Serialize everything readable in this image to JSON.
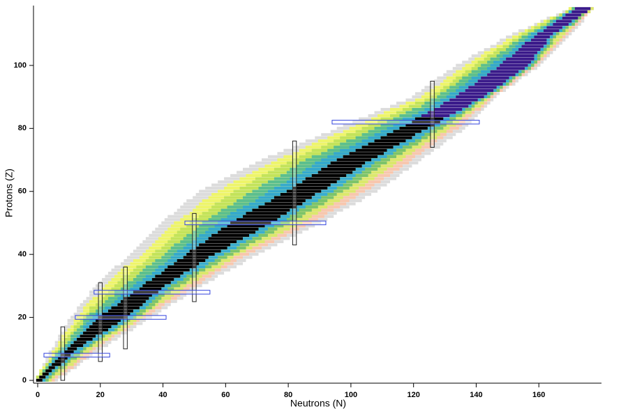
{
  "chart_data": {
    "type": "nuclide-chart",
    "xlabel": "Neutrons (N)",
    "ylabel": "Protons (Z)",
    "xlim": [
      0,
      180
    ],
    "ylim": [
      0,
      119
    ],
    "xticks": [
      0,
      20,
      40,
      60,
      80,
      100,
      120,
      140,
      160
    ],
    "yticks": [
      0,
      20,
      40,
      60,
      80,
      100
    ],
    "last_stable_z": 83,
    "proton_rich_colors": [
      "#dcdcdc",
      "#eef56a",
      "#c3e35a",
      "#5cbf8e",
      "#35a9cc"
    ],
    "neutron_rich_colors": [
      "#dcdcdc",
      "#f8c7ae",
      "#dbe86c",
      "#7cc46a",
      "#3aaed0"
    ],
    "stable_color": "#000000",
    "long_lived_color": "#3a1a8a",
    "magic_color": "#3344dd",
    "nuclides": {
      "z": [
        0,
        1,
        2,
        3,
        4,
        5,
        6,
        7,
        8,
        9,
        10,
        11,
        12,
        13,
        14,
        15,
        16,
        17,
        18,
        19,
        20,
        21,
        22,
        23,
        24,
        25,
        26,
        27,
        28,
        29,
        30,
        31,
        32,
        33,
        34,
        35,
        36,
        37,
        38,
        39,
        40,
        41,
        42,
        43,
        44,
        45,
        46,
        47,
        48,
        49,
        50,
        51,
        52,
        53,
        54,
        55,
        56,
        57,
        58,
        59,
        60,
        61,
        62,
        63,
        64,
        65,
        66,
        67,
        68,
        69,
        70,
        71,
        72,
        73,
        74,
        75,
        76,
        77,
        78,
        79,
        80,
        81,
        82,
        83,
        84,
        85,
        86,
        87,
        88,
        89,
        90,
        91,
        92,
        93,
        94,
        95,
        96,
        97,
        98,
        99,
        100,
        101,
        102,
        103,
        104,
        105,
        106,
        107,
        108,
        109,
        110,
        111,
        112,
        113,
        114,
        115,
        116,
        117,
        118
      ],
      "n_min": [
        0,
        0,
        1,
        1,
        2,
        2,
        3,
        3,
        4,
        4,
        5,
        6,
        6,
        7,
        7,
        8,
        9,
        9,
        10,
        10,
        11,
        12,
        13,
        13,
        14,
        15,
        16,
        17,
        17,
        18,
        19,
        20,
        21,
        22,
        23,
        24,
        25,
        27,
        28,
        29,
        30,
        31,
        32,
        33,
        34,
        35,
        36,
        37,
        38,
        39,
        40,
        41,
        42,
        44,
        45,
        46,
        47,
        48,
        50,
        51,
        52,
        54,
        56,
        58,
        60,
        62,
        64,
        66,
        68,
        70,
        72,
        74,
        77,
        79,
        82,
        84,
        86,
        89,
        91,
        94,
        96,
        98,
        101,
        103,
        106,
        108,
        110,
        113,
        115,
        118,
        120,
        121,
        123,
        124,
        126,
        127,
        128,
        130,
        131,
        133,
        134,
        136,
        138,
        139,
        141,
        143,
        145,
        147,
        148,
        150,
        152,
        154,
        157,
        159,
        161,
        163,
        166,
        168,
        170
      ],
      "n_max": [
        6,
        7,
        9,
        10,
        12,
        13,
        14,
        16,
        17,
        19,
        20,
        22,
        23,
        25,
        26,
        28,
        30,
        31,
        33,
        34,
        36,
        38,
        39,
        41,
        42,
        44,
        46,
        47,
        49,
        50,
        52,
        54,
        56,
        57,
        59,
        61,
        63,
        65,
        66,
        68,
        70,
        72,
        74,
        76,
        78,
        80,
        82,
        84,
        86,
        88,
        90,
        92,
        94,
        95,
        97,
        99,
        101,
        103,
        104,
        106,
        108,
        109,
        111,
        112,
        114,
        115,
        116,
        118,
        119,
        121,
        122,
        123,
        125,
        126,
        128,
        129,
        130,
        132,
        133,
        135,
        136,
        137,
        138,
        139,
        140,
        141,
        142,
        143,
        144,
        145,
        146,
        147,
        149,
        150,
        152,
        153,
        154,
        156,
        157,
        159,
        160,
        161,
        162,
        163,
        164,
        165,
        166,
        167,
        168,
        169,
        170,
        171,
        172,
        173,
        174,
        174,
        175,
        176,
        177
      ],
      "core_min": [
        0,
        1,
        2,
        3,
        4,
        5,
        6,
        7,
        8,
        9,
        10,
        11,
        12,
        13,
        14,
        15,
        16,
        17,
        18,
        19,
        20,
        21,
        23,
        24,
        26,
        27,
        28,
        30,
        31,
        33,
        34,
        35,
        37,
        38,
        40,
        41,
        42,
        44,
        45,
        47,
        48,
        49,
        51,
        52,
        54,
        55,
        56,
        58,
        59,
        61,
        62,
        64,
        66,
        67,
        69,
        71,
        73,
        75,
        76,
        78,
        80,
        82,
        83,
        85,
        86,
        88,
        90,
        91,
        93,
        94,
        96,
        98,
        100,
        102,
        104,
        106,
        108,
        110,
        112,
        114,
        116,
        118,
        120,
        121,
        123,
        125,
        127,
        129,
        130,
        132,
        134,
        135,
        137,
        138,
        140,
        141,
        142,
        144,
        145,
        147,
        148,
        149,
        150,
        152,
        153,
        154,
        155,
        156,
        158,
        159,
        160,
        162,
        163,
        165,
        166,
        168,
        169,
        171,
        172
      ],
      "core_max": [
        1,
        2,
        3,
        4,
        5,
        7,
        8,
        9,
        10,
        11,
        12,
        14,
        15,
        17,
        18,
        20,
        22,
        23,
        25,
        26,
        28,
        29,
        30,
        32,
        33,
        34,
        35,
        36,
        38,
        39,
        40,
        42,
        43,
        45,
        46,
        48,
        50,
        51,
        53,
        54,
        56,
        58,
        60,
        61,
        63,
        65,
        67,
        69,
        70,
        72,
        74,
        76,
        77,
        79,
        80,
        82,
        84,
        85,
        87,
        88,
        90,
        92,
        93,
        95,
        96,
        98,
        100,
        101,
        103,
        104,
        106,
        108,
        110,
        111,
        113,
        115,
        117,
        119,
        120,
        122,
        124,
        126,
        128,
        129,
        131,
        133,
        135,
        137,
        138,
        140,
        142,
        143,
        145,
        146,
        148,
        149,
        150,
        152,
        153,
        155,
        156,
        157,
        158,
        158,
        159,
        160,
        161,
        162,
        162,
        163,
        164,
        166,
        167,
        169,
        170,
        172,
        173,
        175,
        176
      ]
    },
    "magic_neutrons": [
      {
        "value": 8,
        "range": [
          0,
          17
        ]
      },
      {
        "value": 20,
        "range": [
          6,
          31
        ]
      },
      {
        "value": 28,
        "range": [
          10,
          36
        ]
      },
      {
        "value": 50,
        "range": [
          25,
          53
        ]
      },
      {
        "value": 82,
        "range": [
          43,
          76
        ]
      },
      {
        "value": 126,
        "range": [
          74,
          95
        ]
      }
    ],
    "magic_protons": [
      {
        "value": 8,
        "range": [
          2,
          23
        ]
      },
      {
        "value": 20,
        "range": [
          12,
          41
        ]
      },
      {
        "value": 28,
        "range": [
          18,
          55
        ]
      },
      {
        "value": 50,
        "range": [
          47,
          92
        ]
      },
      {
        "value": 82,
        "range": [
          94,
          141
        ]
      }
    ]
  }
}
